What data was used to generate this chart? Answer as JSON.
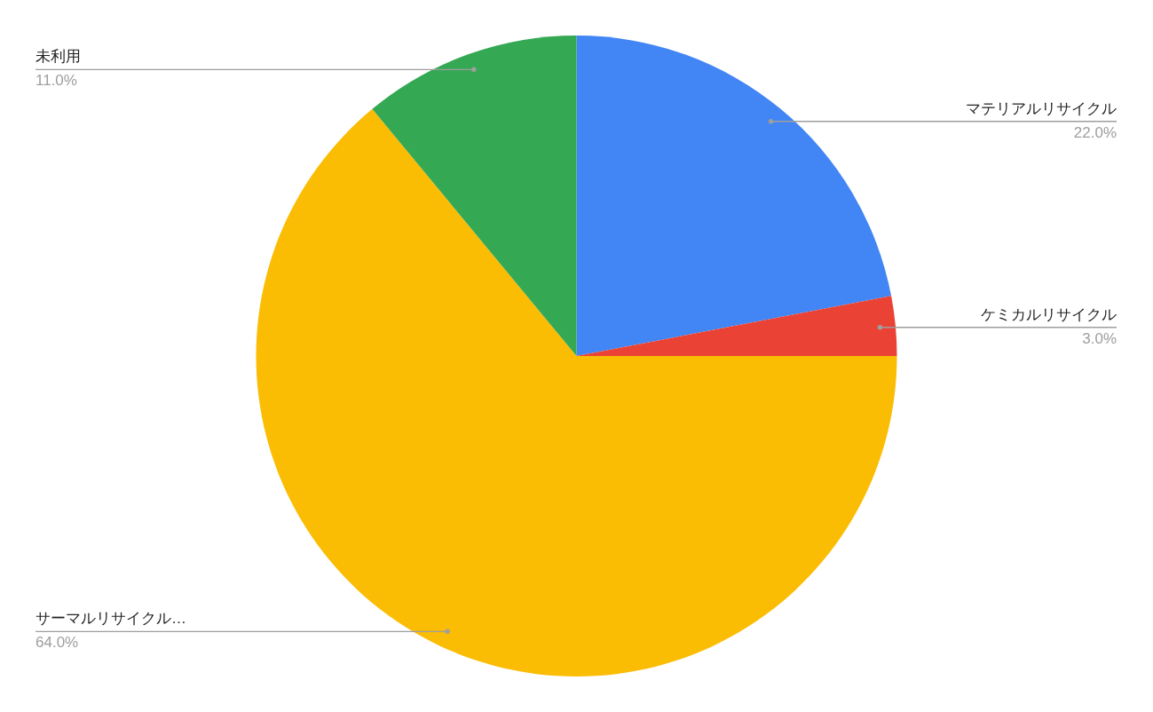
{
  "chart_data": {
    "type": "pie",
    "categories": [
      "マテリアルリサイクル",
      "ケミカルリサイクル",
      "サーマルリサイクル…",
      "未利用"
    ],
    "values": [
      22,
      3,
      64,
      11
    ],
    "value_labels": [
      "22.0%",
      "3.0%",
      "64.0%",
      "11.0%"
    ],
    "colors": [
      "#4285f4",
      "#ea4335",
      "#fbbc04",
      "#34a853"
    ]
  }
}
